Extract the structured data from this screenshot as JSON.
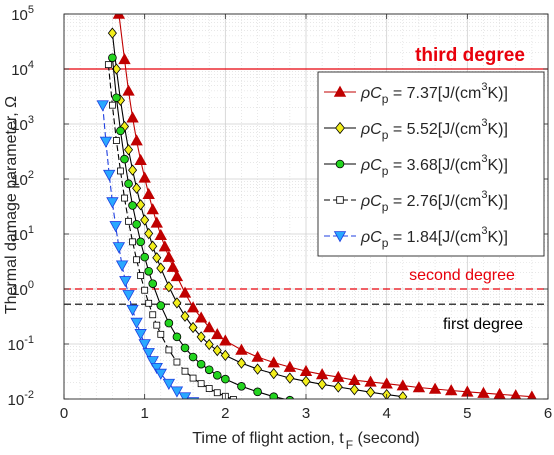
{
  "chart_data": {
    "type": "line",
    "xlabel": "Time of flight action, t",
    "xlabel_sub": "F",
    "xlabel_suffix": " (second)",
    "ylabel": "Thermal damage parameter, Ω",
    "xlim": [
      0,
      6
    ],
    "ylim": [
      0.01,
      100000
    ],
    "yscale": "log",
    "grid": true,
    "legend_placement": "top-right",
    "x_ticks": [
      0,
      1,
      2,
      3,
      4,
      5,
      6
    ],
    "y_ticks": [
      {
        "value": 0.01,
        "base": "10",
        "exp": "-2"
      },
      {
        "value": 0.1,
        "base": "10",
        "exp": "-1"
      },
      {
        "value": 1,
        "base": "10",
        "exp": "0"
      },
      {
        "value": 10,
        "base": "10",
        "exp": "1"
      },
      {
        "value": 100,
        "base": "10",
        "exp": "2"
      },
      {
        "value": 1000,
        "base": "10",
        "exp": "3"
      },
      {
        "value": 10000,
        "base": "10",
        "exp": "4"
      },
      {
        "value": 100000,
        "base": "10",
        "exp": "5"
      }
    ],
    "thresholds": [
      {
        "label": "third degree",
        "value": 10000,
        "color": "#e8000b",
        "style": "solid",
        "bold": true
      },
      {
        "label": "second degree",
        "value": 1,
        "color": "#e8000b",
        "style": "dashed",
        "bold": false
      },
      {
        "label": "first degree",
        "value": 0.53,
        "color": "#000000",
        "style": "dashed",
        "bold": false
      }
    ],
    "series": [
      {
        "name": "ρC",
        "name_sub": "p",
        "name_value": " = 7.37[J/(cm",
        "name_sup": "3",
        "name_tail": "K)]",
        "marker": "triangle-up",
        "color": "#c00000",
        "fill": "#c00000",
        "line_style": "solid",
        "x": [
          0.68,
          0.75,
          0.8,
          0.85,
          0.9,
          0.95,
          1.0,
          1.05,
          1.1,
          1.15,
          1.2,
          1.25,
          1.3,
          1.35,
          1.4,
          1.5,
          1.6,
          1.7,
          1.8,
          1.9,
          2.0,
          2.2,
          2.4,
          2.6,
          2.8,
          3.0,
          3.2,
          3.4,
          3.6,
          3.8,
          4.0,
          4.2,
          4.4,
          4.6,
          4.8,
          5.0,
          5.2,
          5.4,
          5.6,
          5.8
        ],
        "y": [
          100000,
          15000,
          4000,
          1300,
          500,
          220,
          105,
          53,
          28,
          16,
          9.5,
          5.9,
          3.8,
          2.5,
          1.7,
          0.85,
          0.46,
          0.3,
          0.2,
          0.15,
          0.115,
          0.078,
          0.058,
          0.046,
          0.038,
          0.032,
          0.028,
          0.025,
          0.022,
          0.0205,
          0.019,
          0.0175,
          0.0162,
          0.0152,
          0.0143,
          0.0135,
          0.0128,
          0.0122,
          0.0116,
          0.011
        ]
      },
      {
        "name": "ρC",
        "name_sub": "p",
        "name_value": " = 5.52[J/(cm",
        "name_sup": "3",
        "name_tail": "K)]",
        "marker": "diamond",
        "color": "#000000",
        "fill": "#f2ee1c",
        "line_style": "solid",
        "x": [
          0.6,
          0.65,
          0.7,
          0.75,
          0.8,
          0.85,
          0.9,
          0.95,
          1.0,
          1.05,
          1.1,
          1.15,
          1.2,
          1.3,
          1.4,
          1.5,
          1.6,
          1.7,
          1.8,
          1.9,
          2.0,
          2.2,
          2.4,
          2.6,
          2.8,
          3.0,
          3.2,
          3.4,
          3.6,
          3.8,
          4.0,
          4.2
        ],
        "y": [
          45000,
          10000,
          2700,
          900,
          340,
          145,
          68,
          34,
          18,
          10.2,
          6.0,
          3.7,
          2.4,
          1.1,
          0.56,
          0.32,
          0.2,
          0.135,
          0.098,
          0.076,
          0.062,
          0.045,
          0.035,
          0.029,
          0.024,
          0.021,
          0.0185,
          0.0165,
          0.0148,
          0.0133,
          0.012,
          0.011
        ]
      },
      {
        "name": "ρC",
        "name_sub": "p",
        "name_value": " = 3.68[J/(cm",
        "name_sup": "3",
        "name_tail": "K)]",
        "marker": "circle",
        "color": "#000000",
        "fill": "#23d41f",
        "line_style": "solid",
        "x": [
          0.6,
          0.65,
          0.7,
          0.75,
          0.8,
          0.85,
          0.9,
          0.95,
          1.0,
          1.05,
          1.1,
          1.2,
          1.3,
          1.4,
          1.5,
          1.6,
          1.7,
          1.8,
          1.9,
          2.0,
          2.2,
          2.4,
          2.6,
          2.8
        ],
        "y": [
          16000,
          3000,
          750,
          230,
          82,
          33,
          15,
          7.2,
          3.8,
          2.1,
          1.25,
          0.5,
          0.24,
          0.135,
          0.085,
          0.058,
          0.043,
          0.034,
          0.027,
          0.023,
          0.017,
          0.0135,
          0.011,
          0.0095
        ]
      },
      {
        "name": "ρC",
        "name_sub": "p",
        "name_value": " = 2.76[J/(cm",
        "name_sup": "3",
        "name_tail": "K)]",
        "marker": "square",
        "color": "#000000",
        "fill": "#ffffff",
        "line_style": "dashed",
        "x": [
          0.55,
          0.6,
          0.65,
          0.7,
          0.75,
          0.8,
          0.85,
          0.9,
          0.95,
          1.0,
          1.05,
          1.1,
          1.15,
          1.2,
          1.3,
          1.4,
          1.5,
          1.6,
          1.7,
          1.8,
          1.9,
          2.0,
          2.1
        ],
        "y": [
          12000,
          2200,
          500,
          140,
          45,
          17,
          7.2,
          3.4,
          1.75,
          0.95,
          0.55,
          0.34,
          0.22,
          0.15,
          0.078,
          0.047,
          0.032,
          0.024,
          0.019,
          0.0155,
          0.013,
          0.0112,
          0.0098
        ]
      },
      {
        "name": "ρC",
        "name_sub": "p",
        "name_value": " = 1.84[J/(cm",
        "name_sup": "3",
        "name_tail": "K)]",
        "marker": "triangle-down",
        "color": "#1f3fe0",
        "fill": "#29a8ff",
        "line_style": "dashed",
        "x": [
          0.48,
          0.52,
          0.56,
          0.6,
          0.64,
          0.68,
          0.72,
          0.76,
          0.8,
          0.85,
          0.9,
          0.95,
          1.0,
          1.05,
          1.1,
          1.15,
          1.2,
          1.3,
          1.4,
          1.5,
          1.6
        ],
        "y": [
          2200,
          480,
          120,
          38,
          14,
          5.8,
          2.7,
          1.4,
          0.78,
          0.42,
          0.245,
          0.153,
          0.1,
          0.069,
          0.049,
          0.037,
          0.029,
          0.019,
          0.0138,
          0.0108,
          0.0088
        ]
      }
    ]
  }
}
